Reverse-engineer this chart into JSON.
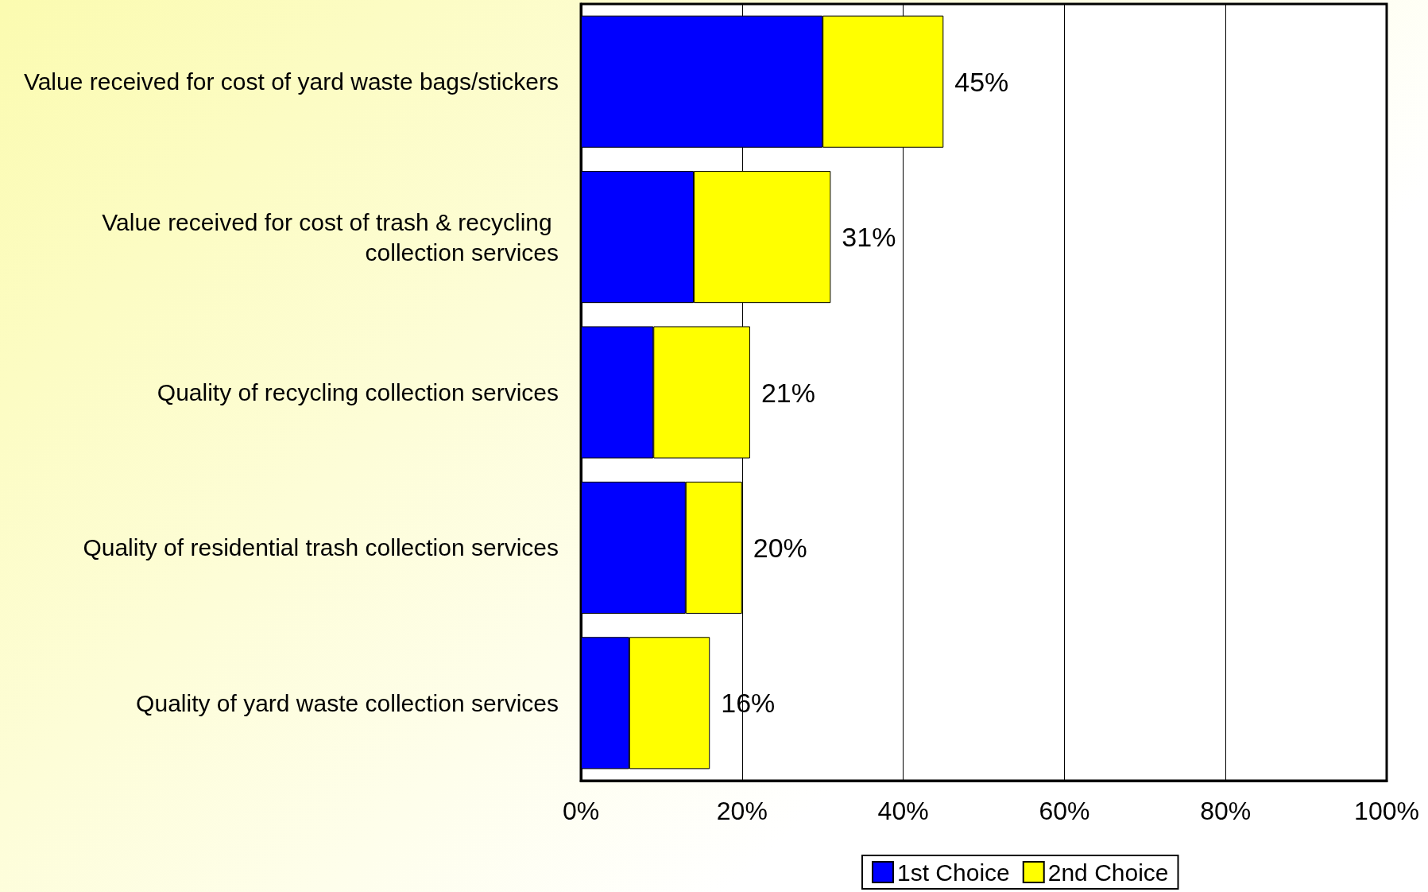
{
  "chart_data": {
    "type": "bar",
    "orientation": "horizontal",
    "stacked": true,
    "categories": [
      "Value received for cost of yard waste bags/stickers",
      "Value received for cost of trash & recycling collection services",
      "Quality of recycling collection services",
      "Quality of residential trash collection services",
      "Quality of yard waste collection services"
    ],
    "series": [
      {
        "name": "1st Choice",
        "color": "#0000ff",
        "values": [
          30,
          14,
          9,
          13,
          6
        ]
      },
      {
        "name": "2nd Choice",
        "color": "#ffff00",
        "values": [
          15,
          17,
          12,
          7,
          10
        ]
      }
    ],
    "totals": [
      "45%",
      "31%",
      "21%",
      "20%",
      "16%"
    ],
    "xlim": [
      0,
      100
    ],
    "xticks": [
      {
        "value": 0,
        "label": "0%"
      },
      {
        "value": 20,
        "label": "20%"
      },
      {
        "value": 40,
        "label": "40%"
      },
      {
        "value": 60,
        "label": "60%"
      },
      {
        "value": 80,
        "label": "80%"
      },
      {
        "value": 100,
        "label": "100%"
      }
    ],
    "grid": "x",
    "legend": "bottom"
  }
}
